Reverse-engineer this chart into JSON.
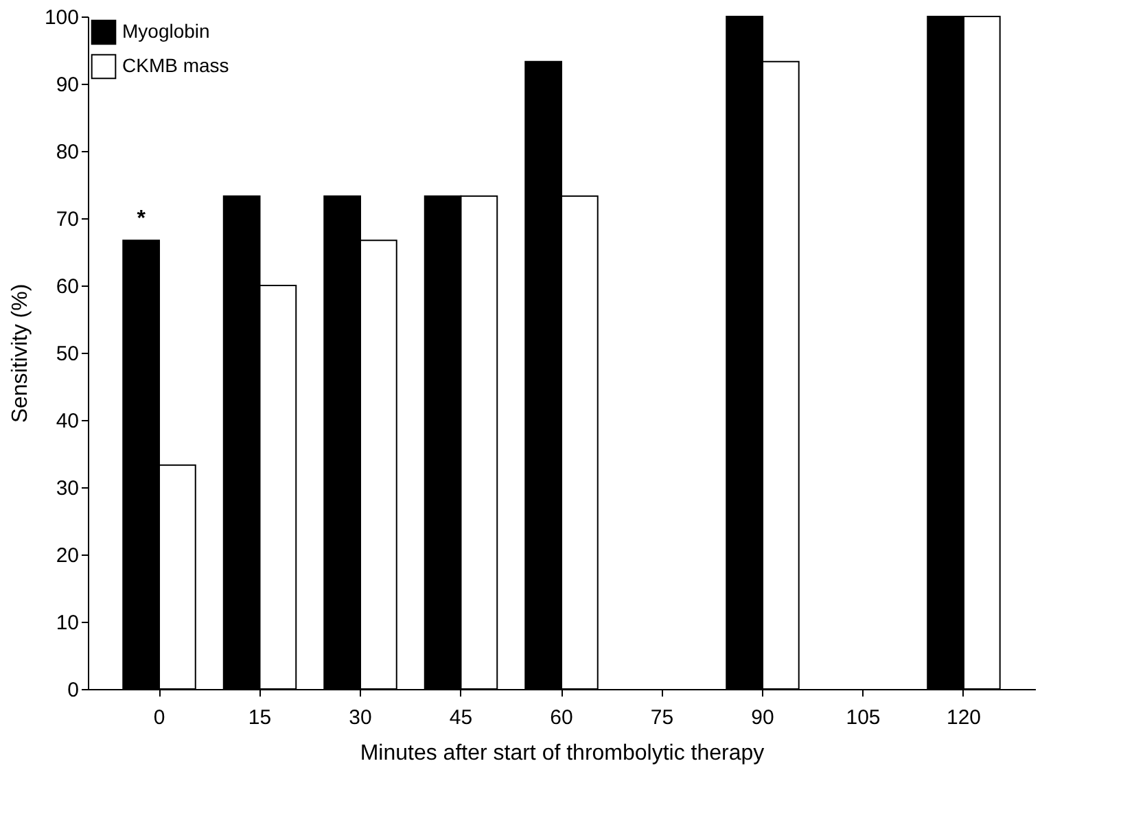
{
  "chart_data": {
    "type": "bar",
    "xlabel": "Minutes after start of thrombolytic therapy",
    "ylabel": "Sensitivity (%)",
    "categories": [
      "0",
      "15",
      "30",
      "45",
      "60",
      "75",
      "90",
      "105",
      "120"
    ],
    "series": [
      {
        "name": "Myoglobin",
        "color": "#000000",
        "values": [
          66.7,
          73.3,
          73.3,
          73.3,
          93.3,
          null,
          100,
          null,
          100
        ]
      },
      {
        "name": "CKMB mass",
        "color": "#ffffff",
        "values": [
          33.3,
          60,
          66.7,
          73.3,
          73.3,
          null,
          93.3,
          null,
          100
        ]
      }
    ],
    "ylim": [
      0,
      100
    ],
    "yticks": [
      0,
      10,
      20,
      30,
      40,
      50,
      60,
      70,
      80,
      90,
      100
    ],
    "annotations": [
      {
        "text": "*",
        "x": "0",
        "y": 66.7
      }
    ],
    "grid": false,
    "legend": "top left"
  }
}
